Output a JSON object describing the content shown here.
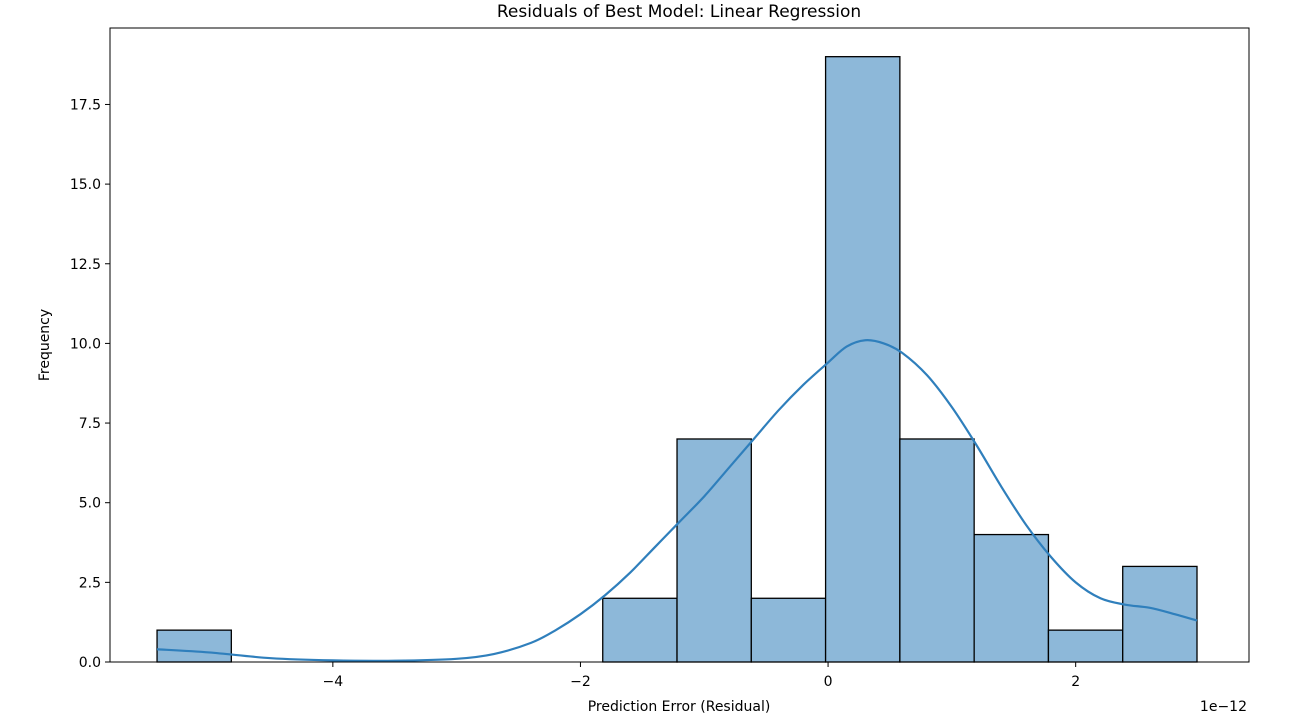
{
  "chart_data": {
    "type": "bar",
    "title": "Residuals of Best Model: Linear Regression",
    "xlabel": "Prediction Error (Residual)",
    "ylabel": "Frequency",
    "x_offset_label": "1e−12",
    "xlim": [
      -5.8,
      3.4
    ],
    "ylim": [
      0,
      19.9
    ],
    "xticks": [
      {
        "value": -4,
        "label": "−4"
      },
      {
        "value": -2,
        "label": "−2"
      },
      {
        "value": 0,
        "label": "0"
      },
      {
        "value": 2,
        "label": "2"
      }
    ],
    "yticks": [
      {
        "value": 0,
        "label": "0.0"
      },
      {
        "value": 2.5,
        "label": "2.5"
      },
      {
        "value": 5,
        "label": "5.0"
      },
      {
        "value": 7.5,
        "label": "7.5"
      },
      {
        "value": 10,
        "label": "10.0"
      },
      {
        "value": 12.5,
        "label": "12.5"
      },
      {
        "value": 15,
        "label": "15.0"
      },
      {
        "value": 17.5,
        "label": "17.5"
      }
    ],
    "bins": [
      {
        "start": -5.42,
        "end": -4.82,
        "count": 1
      },
      {
        "start": -4.82,
        "end": -4.22,
        "count": 0
      },
      {
        "start": -4.22,
        "end": -3.62,
        "count": 0
      },
      {
        "start": -3.62,
        "end": -3.02,
        "count": 0
      },
      {
        "start": -3.02,
        "end": -2.42,
        "count": 0
      },
      {
        "start": -2.42,
        "end": -1.82,
        "count": 0
      },
      {
        "start": -1.82,
        "end": -1.22,
        "count": 2
      },
      {
        "start": -1.22,
        "end": -0.62,
        "count": 7
      },
      {
        "start": -0.62,
        "end": -0.02,
        "count": 2
      },
      {
        "start": -0.02,
        "end": 0.58,
        "count": 19
      },
      {
        "start": 0.58,
        "end": 1.18,
        "count": 7
      },
      {
        "start": 1.18,
        "end": 1.78,
        "count": 4
      },
      {
        "start": 1.78,
        "end": 2.38,
        "count": 1
      },
      {
        "start": 2.38,
        "end": 2.98,
        "count": 3
      }
    ],
    "kde": {
      "x": [
        -5.42,
        -5.0,
        -4.5,
        -4.0,
        -3.5,
        -3.0,
        -2.7,
        -2.4,
        -2.2,
        -2.0,
        -1.8,
        -1.6,
        -1.4,
        -1.2,
        -1.0,
        -0.8,
        -0.6,
        -0.4,
        -0.2,
        0.0,
        0.15,
        0.3,
        0.45,
        0.6,
        0.8,
        1.0,
        1.2,
        1.4,
        1.6,
        1.8,
        2.0,
        2.2,
        2.4,
        2.6,
        2.8,
        2.98
      ],
      "y": [
        0.4,
        0.3,
        0.12,
        0.05,
        0.04,
        0.1,
        0.25,
        0.6,
        1.0,
        1.5,
        2.1,
        2.8,
        3.6,
        4.4,
        5.2,
        6.1,
        7.0,
        7.9,
        8.7,
        9.4,
        9.9,
        10.1,
        10.0,
        9.7,
        9.0,
        8.0,
        6.8,
        5.5,
        4.3,
        3.3,
        2.5,
        2.0,
        1.8,
        1.7,
        1.5,
        1.3
      ]
    },
    "bar_fill": "#8db8d9",
    "bar_edge": "#000000",
    "kde_color": "#2f7fbc",
    "grid": false,
    "legend": "none"
  }
}
